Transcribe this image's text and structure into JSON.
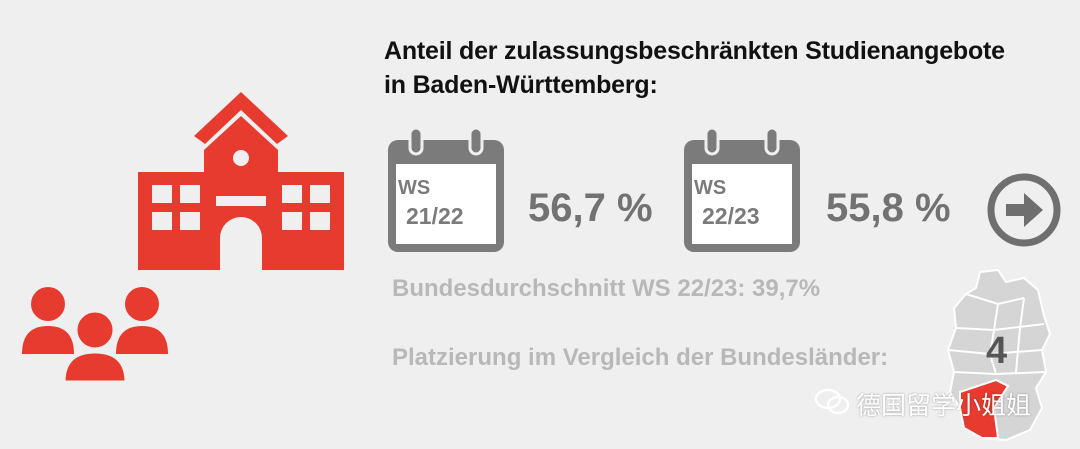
{
  "title": {
    "line1": "Anteil der zulassungsbeschränkten Studienangebote",
    "line2": "in Baden-Württemberg:"
  },
  "calendars": [
    {
      "semester": "WS",
      "year": "21/22",
      "percent": "56,7 %"
    },
    {
      "semester": "WS",
      "year": "22/23",
      "percent": "55,8 %"
    }
  ],
  "federal_average": "Bundesdurchschnitt WS 22/23: 39,7%",
  "ranking_label": "Platzierung im Vergleich der Bundesländer:",
  "ranking_value": "4",
  "watermark": "德国留学小姐姐",
  "icons": {
    "school": "school-building-icon",
    "people": "people-group-icon",
    "calendar": "calendar-icon",
    "arrow": "arrow-right-circle-icon",
    "map": "germany-map-icon",
    "wechat": "wechat-icon"
  },
  "colors": {
    "accent": "#e63b2e",
    "calendar": "#7b7b7b",
    "muted_text": "#b8b8b8",
    "background": "#efefef"
  }
}
